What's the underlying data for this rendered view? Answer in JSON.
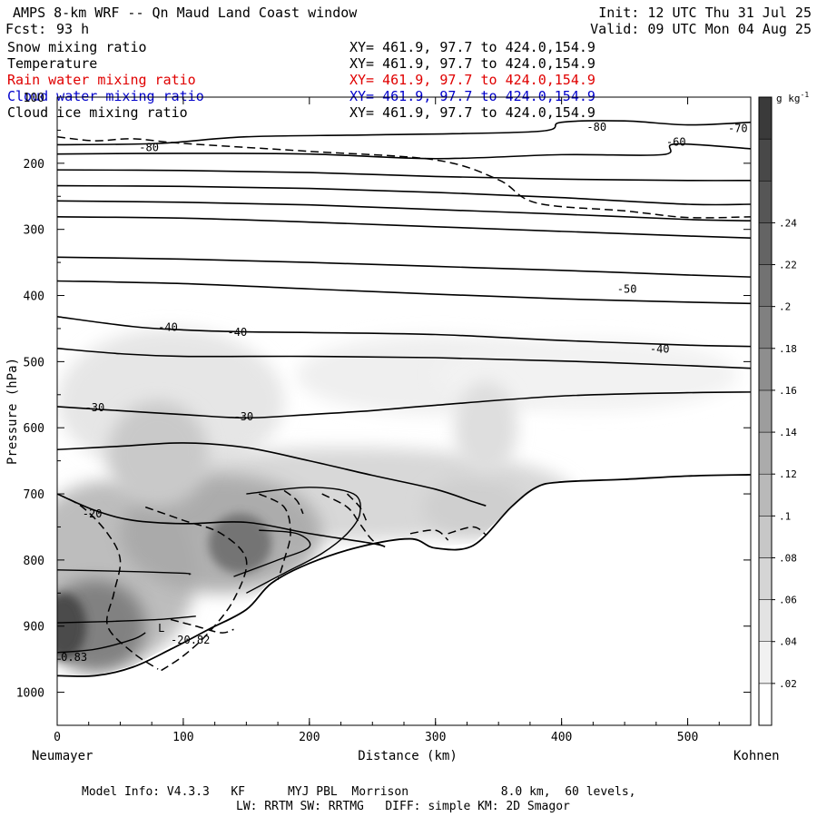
{
  "header": {
    "title": "AMPS 8-km WRF -- Qn Maud Land Coast window",
    "forecast_label": "Fcst:",
    "forecast_hours": "93 h",
    "init": "Init: 12 UTC Thu 31 Jul 25",
    "valid": "Valid: 09 UTC Mon 04 Aug 25"
  },
  "fields": [
    {
      "name": "Snow mixing ratio",
      "xy": "XY= 461.9, 97.7 to 424.0,154.9",
      "color": "#000000"
    },
    {
      "name": "Temperature",
      "xy": "XY= 461.9, 97.7 to 424.0,154.9",
      "color": "#000000"
    },
    {
      "name": "Rain water mixing ratio",
      "xy": "XY= 461.9, 97.7 to 424.0,154.9",
      "color": "#e00000"
    },
    {
      "name": "Cloud water mixing ratio",
      "xy": "XY= 461.9, 97.7 to 424.0,154.9",
      "color": "#0000cc"
    },
    {
      "name": "Cloud ice mixing ratio",
      "xy": "XY= 461.9, 97.7 to 424.0,154.9",
      "color": "#000000"
    }
  ],
  "footer": {
    "line1": "Model Info: V4.3.3   KF      MYJ PBL  Morrison             8.0 km,  60 levels,",
    "line2": "LW: RRTM SW: RRTMG   DIFF: simple KM: 2D Smagor"
  },
  "chart_data": {
    "type": "cross-section",
    "xlabel": "Distance (km)",
    "ylabel": "Pressure (hPa)",
    "x_left_label": "Neumayer",
    "x_right_label": "Kohnen",
    "xlim": [
      0,
      550
    ],
    "ylim": [
      1050,
      100
    ],
    "x_ticks": [
      0,
      100,
      200,
      300,
      400,
      500
    ],
    "y_ticks": [
      100,
      200,
      300,
      400,
      500,
      600,
      700,
      800,
      900,
      1000
    ],
    "colorbar": {
      "unit": "g kg",
      "unit_exp": "-1",
      "ticks": [
        ".02",
        ".04",
        ".06",
        ".08",
        ".1",
        ".12",
        ".14",
        ".16",
        ".18",
        ".2",
        ".22",
        ".24"
      ],
      "levels": 15
    },
    "temperature_labels": [
      {
        "text": "-80",
        "x": 65,
        "p": 179
      },
      {
        "text": "-80",
        "x": 420,
        "p": 148
      },
      {
        "text": "-70",
        "x": 535,
        "p": 152
      },
      {
        "text": "-70",
        "x": 530,
        "p": 151
      },
      {
        "text": "-70",
        "x": 532,
        "p": 150
      }
    ],
    "temperature_labels_main": [
      {
        "text": "-80",
        "x": 65,
        "p": 179
      },
      {
        "text": "-80",
        "x": 420,
        "p": 148
      },
      {
        "text": "-70",
        "x": 532,
        "p": 150
      },
      {
        "text": "-60",
        "x": 483,
        "p": 171
      },
      {
        "text": "-50",
        "x": 444,
        "p": 393
      },
      {
        "text": "-40",
        "x": 80,
        "p": 451
      },
      {
        "text": "-40",
        "x": 135,
        "p": 458
      },
      {
        "text": "-40",
        "x": 470,
        "p": 484
      },
      {
        "text": "-30",
        "x": 22,
        "p": 572
      },
      {
        "text": "-30",
        "x": 140,
        "p": 586
      },
      {
        "text": "-20",
        "x": 20,
        "p": 733
      }
    ],
    "annotations": [
      {
        "text": "L",
        "x": 80,
        "p": 903
      },
      {
        "text": "-20.82",
        "x": 90,
        "p": 921
      },
      {
        "text": "0.83",
        "x": 3,
        "p": 947
      }
    ]
  }
}
